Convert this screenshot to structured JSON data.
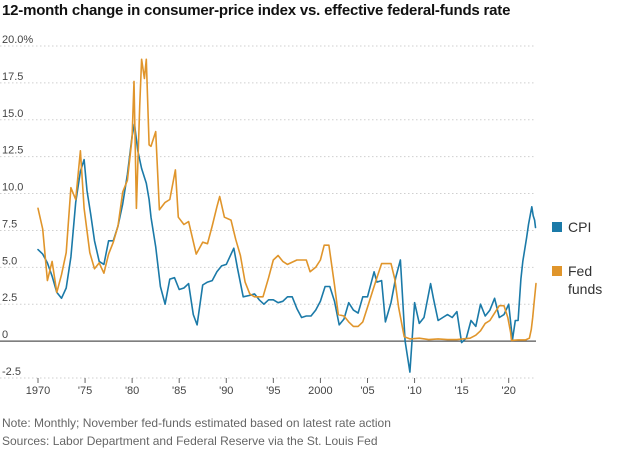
{
  "title": "12-month change in consumer-price index vs. effective federal-funds rate",
  "notes": {
    "note": "Note: Monthly; November fed-funds estimated based on latest rate action",
    "sources": "Sources: Labor Department and Federal Reserve via the St. Louis Fed"
  },
  "colors": {
    "cpi": "#1b7aa8",
    "fed": "#e0952b",
    "grid": "#cfcfcf",
    "zero": "#555555"
  },
  "chart_data": {
    "type": "line",
    "title": "12-month change in consumer-price index vs. effective federal-funds rate",
    "xlabel": "",
    "ylabel": "",
    "xlim": [
      1970,
      2022.9
    ],
    "ylim": [
      -2.5,
      20
    ],
    "grid": true,
    "legend": "right",
    "x_ticks": [
      {
        "value": 1970,
        "label": "1970"
      },
      {
        "value": 1975,
        "label": "'75"
      },
      {
        "value": 1980,
        "label": "'80"
      },
      {
        "value": 1985,
        "label": "'85"
      },
      {
        "value": 1990,
        "label": "'90"
      },
      {
        "value": 1995,
        "label": "'95"
      },
      {
        "value": 2000,
        "label": "2000"
      },
      {
        "value": 2005,
        "label": "'05"
      },
      {
        "value": 2010,
        "label": "'10"
      },
      {
        "value": 2015,
        "label": "'15"
      },
      {
        "value": 2020,
        "label": "'20"
      }
    ],
    "y_ticks": [
      {
        "value": 20,
        "label": "20.0%"
      },
      {
        "value": 17.5,
        "label": "17.5"
      },
      {
        "value": 15,
        "label": "15.0"
      },
      {
        "value": 12.5,
        "label": "12.5"
      },
      {
        "value": 10,
        "label": "10.0"
      },
      {
        "value": 7.5,
        "label": "7.5"
      },
      {
        "value": 5,
        "label": "5.0"
      },
      {
        "value": 2.5,
        "label": "2.5"
      },
      {
        "value": 0,
        "label": "0"
      },
      {
        "value": -2.5,
        "label": "-2.5"
      }
    ],
    "series": [
      {
        "name": "CPI",
        "color": "#1b7aa8",
        "points": [
          [
            1970.0,
            6.2
          ],
          [
            1970.5,
            5.9
          ],
          [
            1971.0,
            5.3
          ],
          [
            1971.5,
            4.4
          ],
          [
            1972.0,
            3.3
          ],
          [
            1972.5,
            2.9
          ],
          [
            1973.0,
            3.6
          ],
          [
            1973.5,
            5.7
          ],
          [
            1974.0,
            9.4
          ],
          [
            1974.5,
            11.5
          ],
          [
            1974.9,
            12.3
          ],
          [
            1975.2,
            10.2
          ],
          [
            1975.6,
            8.6
          ],
          [
            1976.0,
            6.8
          ],
          [
            1976.5,
            5.4
          ],
          [
            1977.0,
            5.2
          ],
          [
            1977.5,
            6.8
          ],
          [
            1978.0,
            6.8
          ],
          [
            1978.5,
            7.8
          ],
          [
            1979.0,
            9.3
          ],
          [
            1979.5,
            11.3
          ],
          [
            1980.0,
            13.9
          ],
          [
            1980.25,
            14.7
          ],
          [
            1980.6,
            12.9
          ],
          [
            1981.0,
            11.7
          ],
          [
            1981.5,
            10.7
          ],
          [
            1981.8,
            9.6
          ],
          [
            1982.0,
            8.4
          ],
          [
            1982.5,
            6.4
          ],
          [
            1983.0,
            3.7
          ],
          [
            1983.5,
            2.5
          ],
          [
            1984.0,
            4.2
          ],
          [
            1984.5,
            4.3
          ],
          [
            1985.0,
            3.5
          ],
          [
            1985.5,
            3.6
          ],
          [
            1986.0,
            3.9
          ],
          [
            1986.5,
            1.8
          ],
          [
            1986.9,
            1.1
          ],
          [
            1987.5,
            3.8
          ],
          [
            1988.0,
            4.0
          ],
          [
            1988.5,
            4.1
          ],
          [
            1989.0,
            4.7
          ],
          [
            1989.5,
            5.1
          ],
          [
            1990.0,
            5.2
          ],
          [
            1990.8,
            6.3
          ],
          [
            1991.2,
            4.9
          ],
          [
            1991.8,
            3.0
          ],
          [
            1992.5,
            3.1
          ],
          [
            1993.0,
            3.2
          ],
          [
            1993.5,
            2.8
          ],
          [
            1994.0,
            2.5
          ],
          [
            1994.5,
            2.8
          ],
          [
            1995.0,
            2.8
          ],
          [
            1995.5,
            2.6
          ],
          [
            1996.0,
            2.7
          ],
          [
            1996.5,
            3.0
          ],
          [
            1997.0,
            3.0
          ],
          [
            1997.5,
            2.2
          ],
          [
            1998.0,
            1.6
          ],
          [
            1998.5,
            1.7
          ],
          [
            1999.0,
            1.7
          ],
          [
            1999.5,
            2.1
          ],
          [
            2000.0,
            2.7
          ],
          [
            2000.5,
            3.7
          ],
          [
            2001.0,
            3.7
          ],
          [
            2001.5,
            2.7
          ],
          [
            2002.0,
            1.1
          ],
          [
            2002.5,
            1.5
          ],
          [
            2003.0,
            2.6
          ],
          [
            2003.5,
            2.1
          ],
          [
            2004.0,
            1.9
          ],
          [
            2004.5,
            3.0
          ],
          [
            2005.0,
            3.0
          ],
          [
            2005.7,
            4.7
          ],
          [
            2006.0,
            4.0
          ],
          [
            2006.5,
            4.1
          ],
          [
            2006.9,
            1.3
          ],
          [
            2007.5,
            2.6
          ],
          [
            2008.0,
            4.3
          ],
          [
            2008.5,
            5.5
          ],
          [
            2009.0,
            0.0
          ],
          [
            2009.5,
            -2.1
          ],
          [
            2010.0,
            2.6
          ],
          [
            2010.5,
            1.2
          ],
          [
            2011.0,
            1.6
          ],
          [
            2011.7,
            3.9
          ],
          [
            2012.0,
            2.9
          ],
          [
            2012.5,
            1.4
          ],
          [
            2013.0,
            1.6
          ],
          [
            2013.5,
            1.8
          ],
          [
            2014.0,
            1.6
          ],
          [
            2014.5,
            2.0
          ],
          [
            2015.0,
            -0.1
          ],
          [
            2015.5,
            0.2
          ],
          [
            2016.0,
            1.4
          ],
          [
            2016.5,
            1.0
          ],
          [
            2017.0,
            2.5
          ],
          [
            2017.5,
            1.7
          ],
          [
            2018.0,
            2.1
          ],
          [
            2018.5,
            2.9
          ],
          [
            2019.0,
            1.6
          ],
          [
            2019.5,
            1.8
          ],
          [
            2020.0,
            2.5
          ],
          [
            2020.4,
            0.1
          ],
          [
            2020.7,
            1.4
          ],
          [
            2021.0,
            1.4
          ],
          [
            2021.3,
            4.2
          ],
          [
            2021.5,
            5.4
          ],
          [
            2021.9,
            7.0
          ],
          [
            2022.1,
            7.9
          ],
          [
            2022.45,
            9.1
          ],
          [
            2022.6,
            8.5
          ],
          [
            2022.75,
            8.2
          ],
          [
            2022.85,
            7.7
          ]
        ]
      },
      {
        "name": "Fed funds",
        "color": "#e0952b",
        "points": [
          [
            1970.0,
            9.0
          ],
          [
            1970.5,
            7.6
          ],
          [
            1971.0,
            4.1
          ],
          [
            1971.5,
            5.4
          ],
          [
            1972.0,
            3.3
          ],
          [
            1972.5,
            4.5
          ],
          [
            1973.0,
            6.0
          ],
          [
            1973.5,
            10.4
          ],
          [
            1974.0,
            9.6
          ],
          [
            1974.5,
            12.9
          ],
          [
            1974.9,
            9.0
          ],
          [
            1975.5,
            6.0
          ],
          [
            1976.0,
            4.9
          ],
          [
            1976.5,
            5.3
          ],
          [
            1977.0,
            4.6
          ],
          [
            1977.5,
            5.9
          ],
          [
            1978.0,
            6.7
          ],
          [
            1978.5,
            7.8
          ],
          [
            1979.0,
            10.1
          ],
          [
            1979.5,
            10.9
          ],
          [
            1980.0,
            13.8
          ],
          [
            1980.2,
            17.6
          ],
          [
            1980.45,
            9.0
          ],
          [
            1980.8,
            15.9
          ],
          [
            1981.0,
            19.1
          ],
          [
            1981.3,
            17.8
          ],
          [
            1981.5,
            19.1
          ],
          [
            1981.8,
            13.3
          ],
          [
            1982.0,
            13.2
          ],
          [
            1982.5,
            14.2
          ],
          [
            1982.9,
            8.9
          ],
          [
            1983.5,
            9.4
          ],
          [
            1984.0,
            9.6
          ],
          [
            1984.6,
            11.6
          ],
          [
            1984.9,
            8.4
          ],
          [
            1985.5,
            7.9
          ],
          [
            1986.0,
            8.1
          ],
          [
            1986.8,
            5.9
          ],
          [
            1987.5,
            6.7
          ],
          [
            1988.0,
            6.6
          ],
          [
            1988.5,
            7.8
          ],
          [
            1989.0,
            9.1
          ],
          [
            1989.3,
            9.8
          ],
          [
            1989.8,
            8.4
          ],
          [
            1990.5,
            8.2
          ],
          [
            1991.0,
            6.9
          ],
          [
            1991.5,
            5.8
          ],
          [
            1992.0,
            4.0
          ],
          [
            1992.5,
            3.2
          ],
          [
            1993.0,
            3.0
          ],
          [
            1993.9,
            3.0
          ],
          [
            1994.5,
            4.3
          ],
          [
            1995.0,
            5.5
          ],
          [
            1995.5,
            5.8
          ],
          [
            1996.0,
            5.4
          ],
          [
            1996.5,
            5.2
          ],
          [
            1997.5,
            5.5
          ],
          [
            1998.5,
            5.5
          ],
          [
            1998.9,
            4.7
          ],
          [
            1999.5,
            5.0
          ],
          [
            2000.0,
            5.5
          ],
          [
            2000.4,
            6.5
          ],
          [
            2000.9,
            6.5
          ],
          [
            2001.5,
            3.8
          ],
          [
            2001.9,
            1.8
          ],
          [
            2002.5,
            1.7
          ],
          [
            2003.0,
            1.3
          ],
          [
            2003.5,
            1.0
          ],
          [
            2004.0,
            1.0
          ],
          [
            2004.5,
            1.3
          ],
          [
            2005.0,
            2.3
          ],
          [
            2005.5,
            3.3
          ],
          [
            2006.0,
            4.3
          ],
          [
            2006.5,
            5.25
          ],
          [
            2007.5,
            5.25
          ],
          [
            2007.9,
            4.2
          ],
          [
            2008.3,
            2.3
          ],
          [
            2008.9,
            0.3
          ],
          [
            2009.5,
            0.15
          ],
          [
            2010.5,
            0.2
          ],
          [
            2011.5,
            0.1
          ],
          [
            2012.5,
            0.15
          ],
          [
            2013.5,
            0.1
          ],
          [
            2014.5,
            0.1
          ],
          [
            2015.9,
            0.2
          ],
          [
            2016.5,
            0.4
          ],
          [
            2017.0,
            0.7
          ],
          [
            2017.5,
            1.2
          ],
          [
            2018.0,
            1.4
          ],
          [
            2018.5,
            1.9
          ],
          [
            2019.0,
            2.4
          ],
          [
            2019.5,
            2.4
          ],
          [
            2019.9,
            1.6
          ],
          [
            2020.2,
            0.6
          ],
          [
            2020.3,
            0.05
          ],
          [
            2021.0,
            0.08
          ],
          [
            2021.8,
            0.08
          ],
          [
            2022.2,
            0.2
          ],
          [
            2022.4,
            0.8
          ],
          [
            2022.55,
            1.6
          ],
          [
            2022.7,
            2.6
          ],
          [
            2022.9,
            3.9
          ]
        ]
      }
    ]
  }
}
